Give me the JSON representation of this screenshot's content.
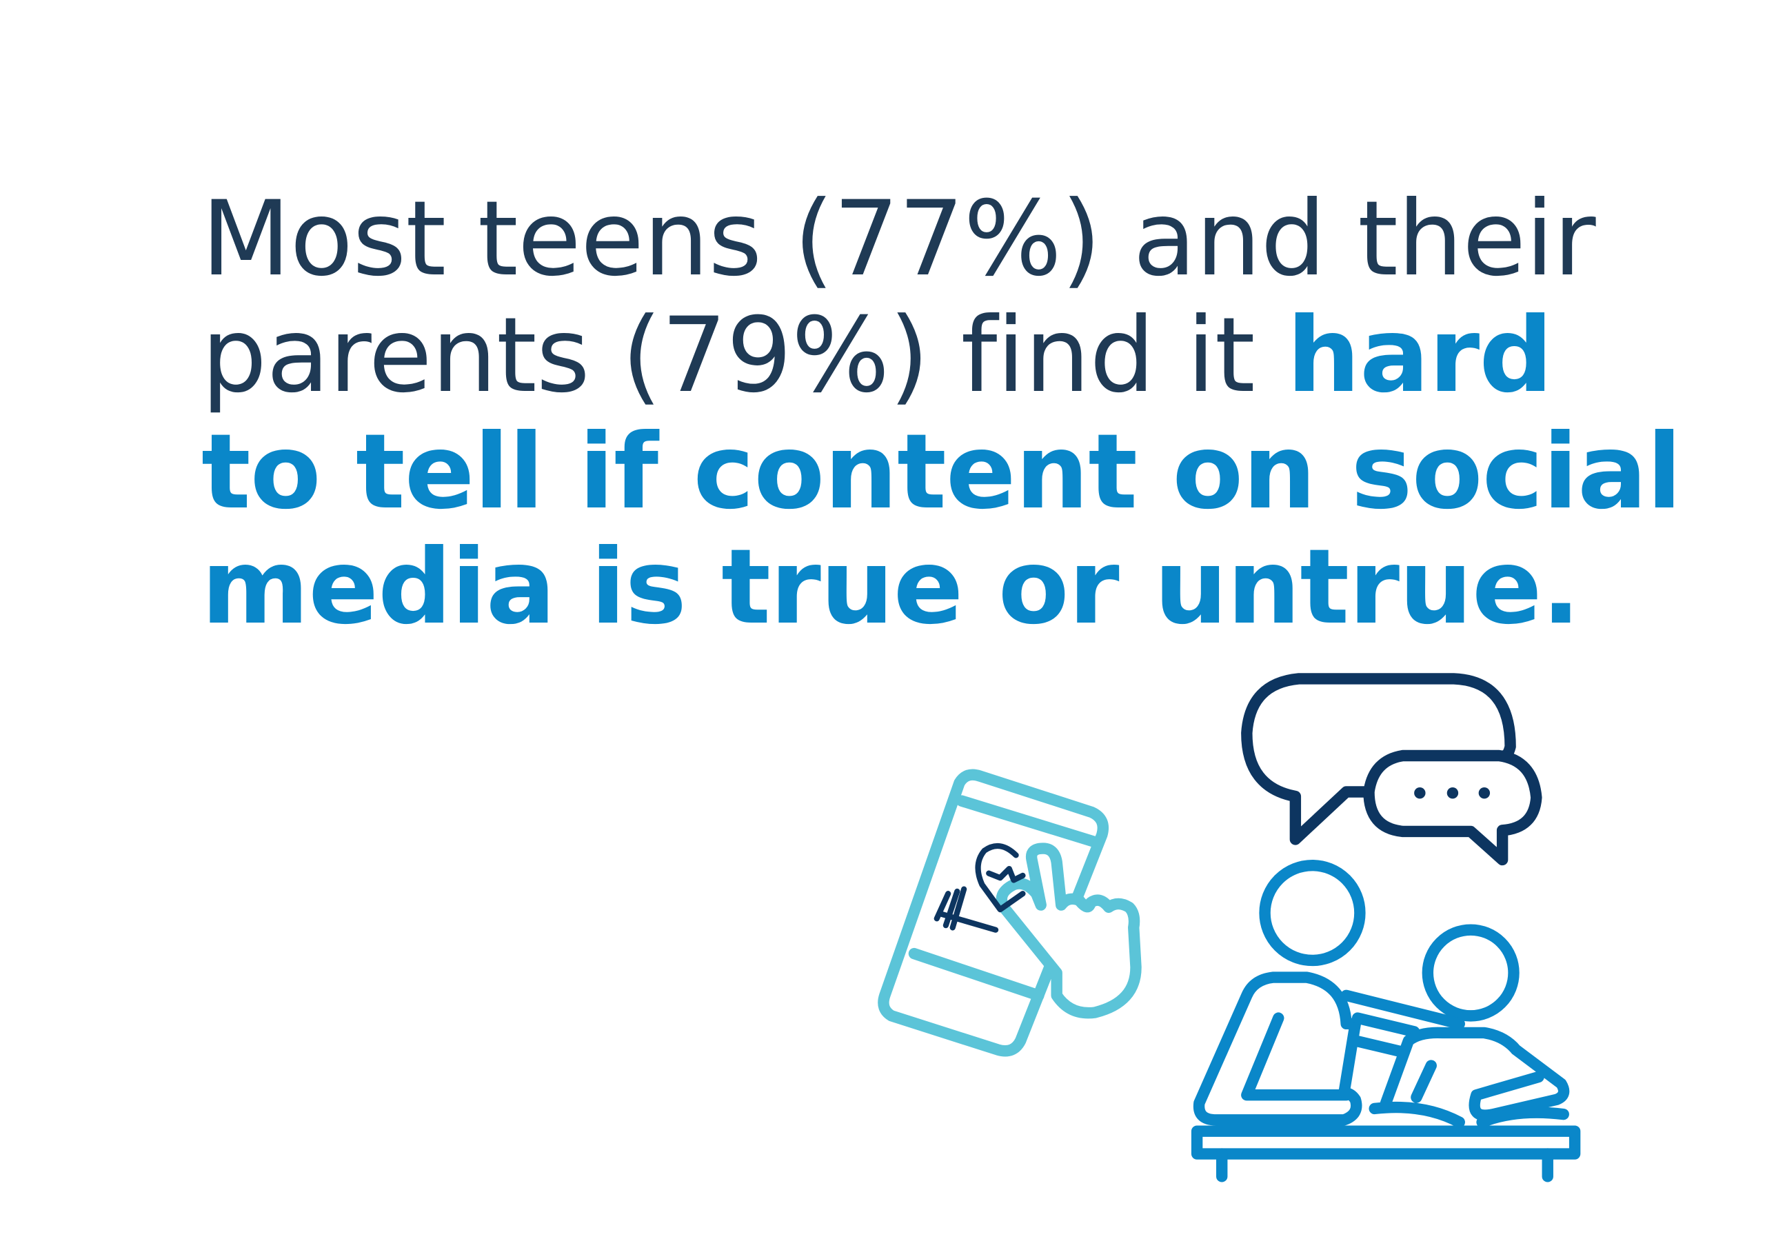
{
  "statement": {
    "regular": [
      "Most teens (77%) and their",
      "parents (79%) find it"
    ],
    "highlight": [
      "hard",
      "to tell if content on social",
      "media is true or untrue."
    ]
  }
}
